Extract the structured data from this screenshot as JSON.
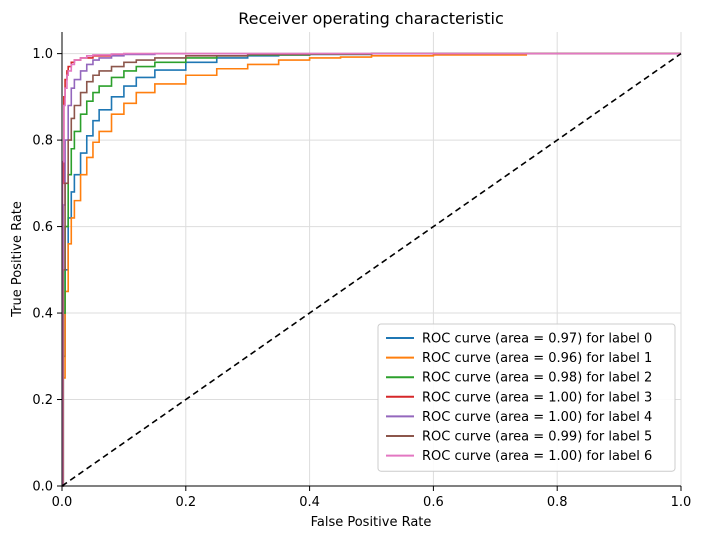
{
  "chart_data": {
    "type": "line",
    "title": "Receiver operating characteristic",
    "xlabel": "False Positive Rate",
    "ylabel": "True Positive Rate",
    "xlim": [
      0.0,
      1.0
    ],
    "ylim": [
      0.0,
      1.05
    ],
    "xticks": [
      0.0,
      0.2,
      0.4,
      0.6,
      0.8,
      1.0
    ],
    "yticks": [
      0.0,
      0.2,
      0.4,
      0.6,
      0.8,
      1.0
    ],
    "xtick_labels": [
      "0.0",
      "0.2",
      "0.4",
      "0.6",
      "0.8",
      "1.0"
    ],
    "ytick_labels": [
      "0.0",
      "0.2",
      "0.4",
      "0.6",
      "0.8",
      "1.0"
    ],
    "grid": true,
    "legend_position": "lower-right",
    "series": [
      {
        "name": "ROC curve (area = 0.97) for label 0",
        "color": "#1f77b4",
        "x": [
          0,
          0.002,
          0.005,
          0.01,
          0.015,
          0.02,
          0.03,
          0.04,
          0.05,
          0.06,
          0.08,
          0.1,
          0.12,
          0.15,
          0.2,
          0.25,
          0.3,
          0.35,
          0.4,
          0.5,
          1.0
        ],
        "y": [
          0,
          0.3,
          0.5,
          0.62,
          0.68,
          0.72,
          0.77,
          0.81,
          0.845,
          0.87,
          0.9,
          0.925,
          0.945,
          0.962,
          0.98,
          0.99,
          0.995,
          0.997,
          0.998,
          1.0,
          1.0
        ]
      },
      {
        "name": "ROC curve (area = 0.96) for label 1",
        "color": "#ff7f0e",
        "x": [
          0,
          0.002,
          0.005,
          0.01,
          0.015,
          0.02,
          0.03,
          0.04,
          0.05,
          0.06,
          0.08,
          0.1,
          0.12,
          0.15,
          0.2,
          0.25,
          0.3,
          0.35,
          0.4,
          0.45,
          0.5,
          0.6,
          0.75,
          1.0
        ],
        "y": [
          0,
          0.25,
          0.45,
          0.56,
          0.62,
          0.66,
          0.72,
          0.76,
          0.795,
          0.82,
          0.86,
          0.885,
          0.91,
          0.93,
          0.95,
          0.965,
          0.975,
          0.985,
          0.99,
          0.992,
          0.995,
          0.997,
          1.0,
          1.0
        ]
      },
      {
        "name": "ROC curve (area = 0.98) for label 2",
        "color": "#2ca02c",
        "x": [
          0,
          0.002,
          0.005,
          0.01,
          0.015,
          0.02,
          0.03,
          0.04,
          0.05,
          0.06,
          0.08,
          0.1,
          0.12,
          0.15,
          0.2,
          0.25,
          0.3,
          0.4,
          0.5,
          1.0
        ],
        "y": [
          0,
          0.4,
          0.6,
          0.72,
          0.78,
          0.82,
          0.86,
          0.89,
          0.91,
          0.925,
          0.945,
          0.96,
          0.97,
          0.98,
          0.99,
          0.995,
          0.997,
          0.999,
          1.0,
          1.0
        ]
      },
      {
        "name": "ROC curve (area = 1.00) for label 3",
        "color": "#d62728",
        "x": [
          0,
          0.001,
          0.003,
          0.005,
          0.008,
          0.01,
          0.015,
          0.02,
          0.03,
          0.05,
          0.08,
          0.1,
          0.15,
          0.2,
          1.0
        ],
        "y": [
          0,
          0.7,
          0.9,
          0.94,
          0.96,
          0.97,
          0.98,
          0.985,
          0.99,
          0.995,
          0.998,
          1.0,
          1.0,
          1.0,
          1.0
        ]
      },
      {
        "name": "ROC curve (area = 1.00) for label 4",
        "color": "#9467bd",
        "x": [
          0,
          0.002,
          0.005,
          0.01,
          0.015,
          0.02,
          0.03,
          0.04,
          0.05,
          0.06,
          0.08,
          0.1,
          0.15,
          0.2,
          0.3,
          1.0
        ],
        "y": [
          0,
          0.65,
          0.8,
          0.88,
          0.92,
          0.94,
          0.96,
          0.975,
          0.985,
          0.99,
          0.995,
          0.998,
          1.0,
          1.0,
          1.0,
          1.0
        ]
      },
      {
        "name": "ROC curve (area = 0.99) for label 5",
        "color": "#8c564b",
        "x": [
          0,
          0.002,
          0.005,
          0.01,
          0.015,
          0.02,
          0.03,
          0.04,
          0.05,
          0.06,
          0.08,
          0.1,
          0.12,
          0.15,
          0.2,
          0.3,
          0.4,
          0.5,
          1.0
        ],
        "y": [
          0,
          0.5,
          0.7,
          0.8,
          0.85,
          0.88,
          0.91,
          0.935,
          0.95,
          0.96,
          0.97,
          0.98,
          0.985,
          0.99,
          0.995,
          0.998,
          0.999,
          1.0,
          1.0
        ]
      },
      {
        "name": "ROC curve (area = 1.00) for label 6",
        "color": "#e377c2",
        "x": [
          0,
          0.001,
          0.003,
          0.005,
          0.008,
          0.01,
          0.015,
          0.02,
          0.03,
          0.04,
          0.05,
          0.08,
          0.1,
          0.2,
          1.0
        ],
        "y": [
          0,
          0.75,
          0.88,
          0.92,
          0.95,
          0.96,
          0.975,
          0.985,
          0.99,
          0.995,
          0.997,
          0.999,
          1.0,
          1.0,
          1.0
        ]
      },
      {
        "color": "#000000",
        "dashed": true,
        "x": [
          0,
          1
        ],
        "y": [
          0,
          1
        ]
      }
    ]
  }
}
